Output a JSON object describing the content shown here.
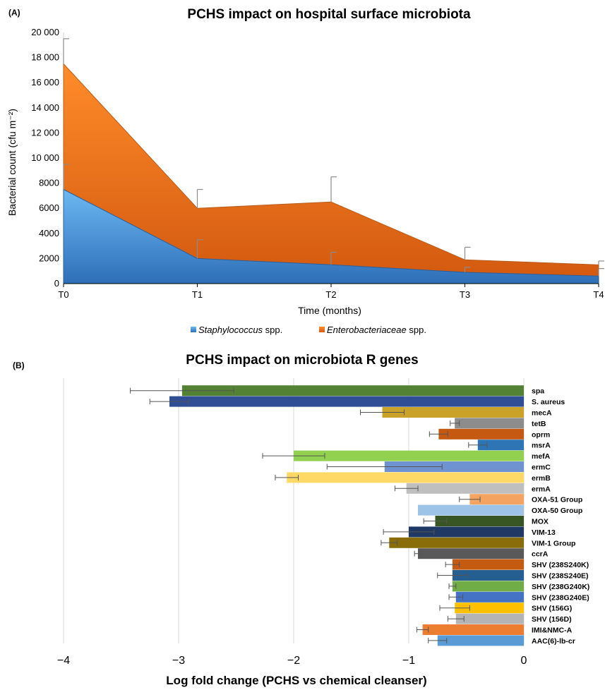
{
  "chart_data": [
    {
      "panel_label": "(A)",
      "type": "area",
      "stacked": true,
      "title": "PCHS impact on hospital surface microbiota",
      "xlabel": "Time (months)",
      "ylabel": "Bacterial count (cfu m⁻²)",
      "categories": [
        "T0",
        "T1",
        "T2",
        "T3",
        "T4"
      ],
      "ylim": [
        0,
        20000
      ],
      "yticks": [
        "0",
        "2000",
        "4000",
        "6000",
        "8000",
        "10 000",
        "12 000",
        "14 000",
        "16 000",
        "18 000",
        "20 000"
      ],
      "series": [
        {
          "name_italic": "Staphylococcus",
          "name_rest": " spp.",
          "color": "#4a90d9",
          "values": [
            7500,
            2000,
            1500,
            900,
            600
          ],
          "error_plus": [
            2000,
            1500,
            1000,
            400,
            600
          ]
        },
        {
          "name_italic": "Enterobacteriaceae",
          "name_rest": " spp.",
          "color": "#e8701f",
          "values": [
            10000,
            4000,
            5000,
            1000,
            900
          ],
          "error_plus": [
            2000,
            1500,
            2000,
            1000,
            300
          ]
        }
      ],
      "legend_position": "bottom"
    },
    {
      "panel_label": "(B)",
      "type": "bar",
      "orientation": "horizontal",
      "title": "PCHS impact on microbiota R genes",
      "xlabel": "Log fold change (PCHS vs chemical cleanser)",
      "xlim": [
        -4,
        0
      ],
      "xticks": [
        "−4",
        "−3",
        "−2",
        "−1",
        "0"
      ],
      "grid": true,
      "bars": [
        {
          "gene": "spa",
          "value": -2.97,
          "err": 0.45,
          "color": "#548235"
        },
        {
          "gene": "S. aureus",
          "value": -3.08,
          "err": 0.17,
          "color": "#2f4e96"
        },
        {
          "gene": "mecA",
          "value": -1.23,
          "err": 0.19,
          "color": "#c9a227"
        },
        {
          "gene": "tetB",
          "value": -0.6,
          "err": 0.04,
          "color": "#8c8c8c"
        },
        {
          "gene": "oprm",
          "value": -0.74,
          "err": 0.08,
          "color": "#c65911"
        },
        {
          "gene": "msrA",
          "value": -0.4,
          "err": 0.08,
          "color": "#2e75b6"
        },
        {
          "gene": "mefA",
          "value": -2.0,
          "err": 0.27,
          "color": "#92d050"
        },
        {
          "gene": "ermC",
          "value": -1.21,
          "err": 0.5,
          "color": "#6f93d0"
        },
        {
          "gene": "ermB",
          "value": -2.06,
          "err": 0.1,
          "color": "#ffd966"
        },
        {
          "gene": "ermA",
          "value": -1.02,
          "err": 0.1,
          "color": "#bfbfbf"
        },
        {
          "gene": "OXA-51 Group",
          "value": -0.47,
          "err": 0.09,
          "color": "#f4a460"
        },
        {
          "gene": "OXA-50 Group",
          "value": -0.92,
          "err": 0,
          "color": "#9dc3e6"
        },
        {
          "gene": "MOX",
          "value": -0.77,
          "err": 0.1,
          "color": "#375623"
        },
        {
          "gene": "VIM-13",
          "value": -1.0,
          "err": 0.22,
          "color": "#1f3864"
        },
        {
          "gene": "VIM-1 Group",
          "value": -1.17,
          "err": 0.07,
          "color": "#8a6d0b"
        },
        {
          "gene": "ccrA",
          "value": -0.92,
          "err": 0.03,
          "color": "#595959"
        },
        {
          "gene": "SHV (238S240K)",
          "value": -0.62,
          "err": 0.06,
          "color": "#c55a11"
        },
        {
          "gene": "SHV (238S240E)",
          "value": -0.62,
          "err": 0.13,
          "color": "#255e91"
        },
        {
          "gene": "SHV (238G240K)",
          "value": -0.62,
          "err": 0.03,
          "color": "#70ad47"
        },
        {
          "gene": "SHV (238G240E)",
          "value": -0.59,
          "err": 0.06,
          "color": "#4472c4"
        },
        {
          "gene": "SHV (156G)",
          "value": -0.6,
          "err": 0.13,
          "color": "#ffc000"
        },
        {
          "gene": "SHV (156D)",
          "value": -0.59,
          "err": 0.07,
          "color": "#b4b4b4"
        },
        {
          "gene": "IMI&NMC-A",
          "value": -0.88,
          "err": 0.05,
          "color": "#ed7d31"
        },
        {
          "gene": "AAC(6)-lb-cr",
          "value": -0.75,
          "err": 0.08,
          "color": "#5b9bd5"
        }
      ]
    }
  ]
}
